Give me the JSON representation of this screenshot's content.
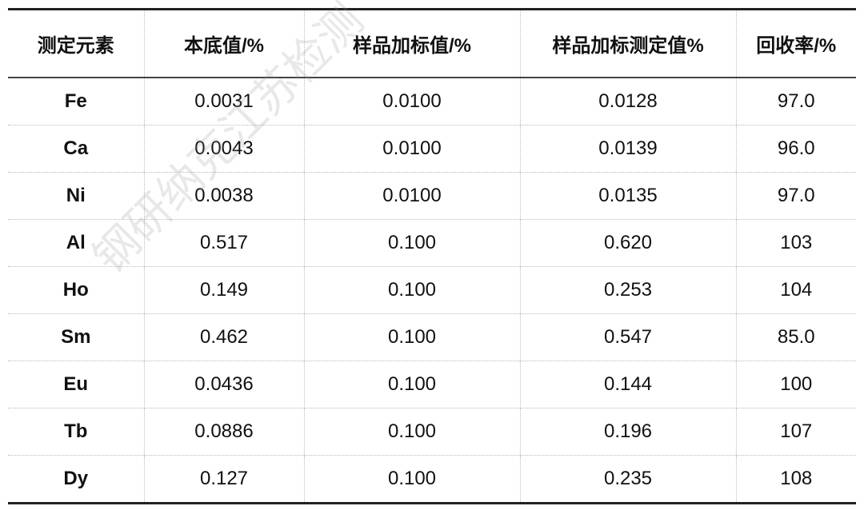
{
  "watermark": "钢研纳克江苏检测",
  "table": {
    "header": [
      "测定元素",
      "本底值/%",
      "样品加标值/%",
      "样品加标测定值%",
      "回收率/%"
    ],
    "rows": [
      [
        "Fe",
        "0.0031",
        "0.0100",
        "0.0128",
        "97.0"
      ],
      [
        "Ca",
        "0.0043",
        "0.0100",
        "0.0139",
        "96.0"
      ],
      [
        "Ni",
        "0.0038",
        "0.0100",
        "0.0135",
        "97.0"
      ],
      [
        "Al",
        "0.517",
        "0.100",
        "0.620",
        "103"
      ],
      [
        "Ho",
        "0.149",
        "0.100",
        "0.253",
        "104"
      ],
      [
        "Sm",
        "0.462",
        "0.100",
        "0.547",
        "85.0"
      ],
      [
        "Eu",
        "0.0436",
        "0.100",
        "0.144",
        "100"
      ],
      [
        "Tb",
        "0.0886",
        "0.100",
        "0.196",
        "107"
      ],
      [
        "Dy",
        "0.127",
        "0.100",
        "0.235",
        "108"
      ]
    ]
  }
}
